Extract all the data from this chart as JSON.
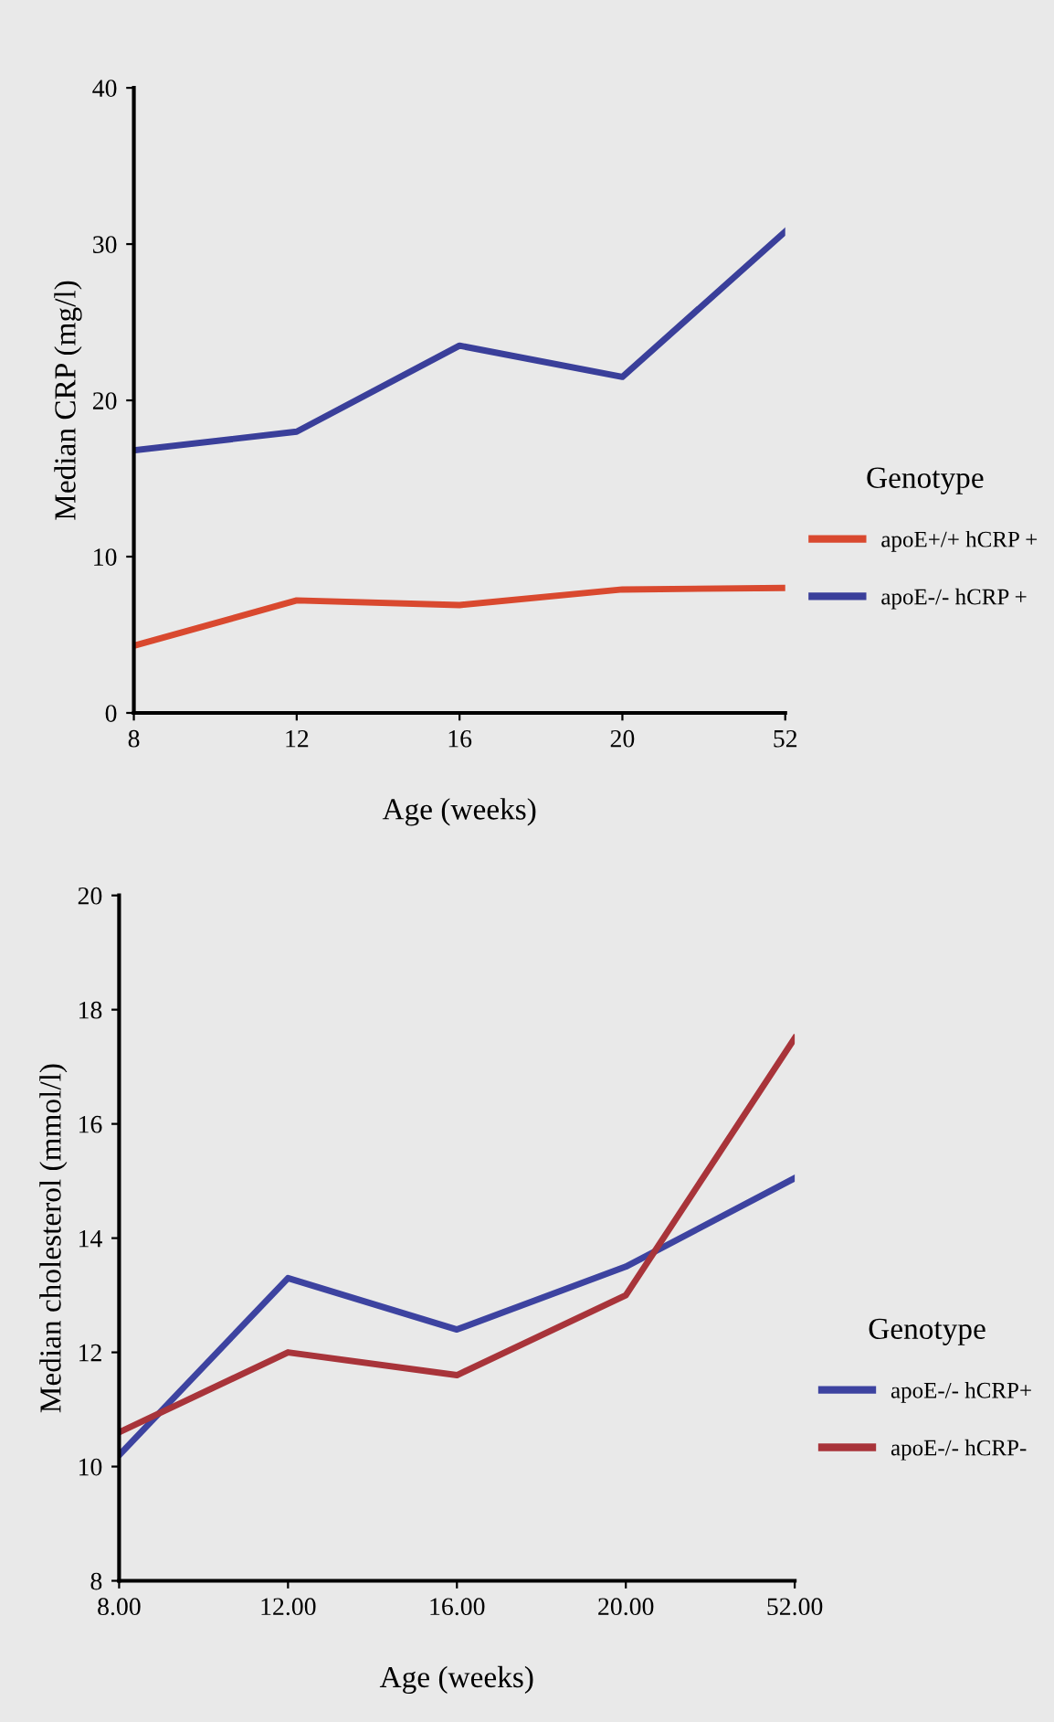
{
  "chart_data": [
    {
      "type": "line",
      "xlabel": "Age (weeks)",
      "ylabel": "Median CRP (mg/l)",
      "legend_title": "Genotype",
      "legend": "right",
      "grid": false,
      "categories": [
        "8",
        "12",
        "16",
        "20",
        "52"
      ],
      "ylim": [
        0,
        40
      ],
      "yticks": [
        0,
        10,
        20,
        30,
        40
      ],
      "series": [
        {
          "name": "apoE+/+ hCRP +",
          "color": "#d9492f",
          "values": [
            4.3,
            7.2,
            6.9,
            7.9,
            8.0
          ]
        },
        {
          "name": "apoE-/- hCRP +",
          "color": "#3a3f9a",
          "values": [
            16.8,
            18.0,
            23.5,
            21.5,
            30.8
          ]
        }
      ]
    },
    {
      "type": "line",
      "xlabel": "Age (weeks)",
      "ylabel": "Median cholesterol (mmol/l)",
      "legend_title": "Genotype",
      "legend": "right",
      "grid": false,
      "categories": [
        "8.00",
        "12.00",
        "16.00",
        "20.00",
        "52.00"
      ],
      "ylim": [
        8,
        20
      ],
      "yticks": [
        8,
        10,
        12,
        14,
        16,
        18,
        20
      ],
      "series": [
        {
          "name": "apoE-/- hCRP+",
          "color": "#3d43a0",
          "values": [
            10.2,
            13.3,
            12.4,
            13.5,
            15.05
          ]
        },
        {
          "name": "apoE-/- hCRP-",
          "color": "#a8343a",
          "values": [
            10.6,
            12.0,
            11.6,
            13.0,
            17.5
          ]
        }
      ]
    }
  ]
}
